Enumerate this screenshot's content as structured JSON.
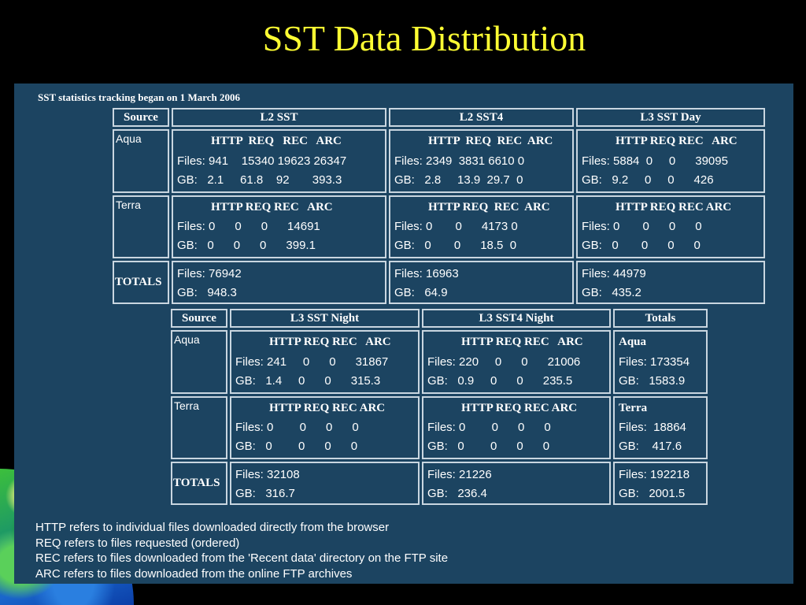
{
  "slide": {
    "title": "SST Data Distribution"
  },
  "panel": {
    "note": "SST statistics tracking began on 1 March 2006"
  },
  "top": {
    "source_label": "Source",
    "columns": [
      "L2 SST",
      "L2 SST4",
      "L3 SST Day"
    ],
    "aqua_label": "Aqua",
    "terra_label": "Terra",
    "totals_label": "TOTALS",
    "aqua_headers": [
      "HTTP  REQ   REC   ARC",
      "HTTP  REQ  REC  ARC",
      "HTTP REQ REC   ARC"
    ],
    "aqua_files": [
      "Files: 941    15340 19623 26347",
      "Files: 2349  3831 6610 0",
      "Files: 5884  0     0      39095"
    ],
    "aqua_gb": [
      "GB:   2.1     61.8    92       393.3",
      "GB:   2.8     13.9  29.7  0",
      "GB:   9.2     0     0      426"
    ],
    "terra_headers": [
      "HTTP REQ REC   ARC",
      "HTTP REQ  REC  ARC",
      "HTTP REQ REC ARC"
    ],
    "terra_files": [
      "Files: 0      0      0      14691",
      "Files: 0       0      4173 0",
      "Files: 0       0      0      0"
    ],
    "terra_gb": [
      "GB:   0      0      0      399.1",
      "GB:   0       0      18.5  0",
      "GB:   0       0      0      0"
    ],
    "totals_files": [
      "Files: 76942",
      "Files: 16963",
      "Files: 44979"
    ],
    "totals_gb": [
      "GB:   948.3",
      "GB:   64.9",
      "GB:   435.2"
    ]
  },
  "bottom": {
    "source_label": "Source",
    "columns": [
      "L3 SST Night",
      "L3 SST4 Night",
      "Totals"
    ],
    "aqua_label": "Aqua",
    "terra_label": "Terra",
    "totals_label": "TOTALS",
    "aqua_headers": [
      "HTTP REQ REC   ARC",
      "HTTP REQ REC   ARC"
    ],
    "aqua_files": [
      "Files: 241     0      0      31867",
      "Files: 220     0      0      21006"
    ],
    "aqua_gb": [
      "GB:   1.4     0      0      315.3",
      "GB:   0.9     0      0      235.5"
    ],
    "terra_headers": [
      "HTTP REQ REC ARC",
      "HTTP REQ REC ARC"
    ],
    "terra_files": [
      "Files: 0        0      0      0",
      "Files: 0        0      0      0"
    ],
    "terra_gb": [
      "GB:   0        0      0      0",
      "GB:   0        0      0      0"
    ],
    "totals_files": [
      "Files: 32108",
      "Files: 21226"
    ],
    "totals_gb": [
      "GB:   316.7",
      "GB:   236.4"
    ],
    "sum_aqua": {
      "label": "Aqua",
      "files": "Files: 173354",
      "gb": "GB:   1583.9"
    },
    "sum_terra": {
      "label": "Terra",
      "files": "Files:  18864",
      "gb": "GB:    417.6"
    },
    "sum_totals": {
      "files": "Files: 192218",
      "gb": "GB:   2001.5"
    }
  },
  "notes": [
    "HTTP refers to individual files downloaded directly from the browser",
    "REQ refers to files requested (ordered)",
    "REC refers to files downloaded from the 'Recent data' directory on the FTP site",
    "ARC refers to files downloaded from the online FTP archives"
  ]
}
